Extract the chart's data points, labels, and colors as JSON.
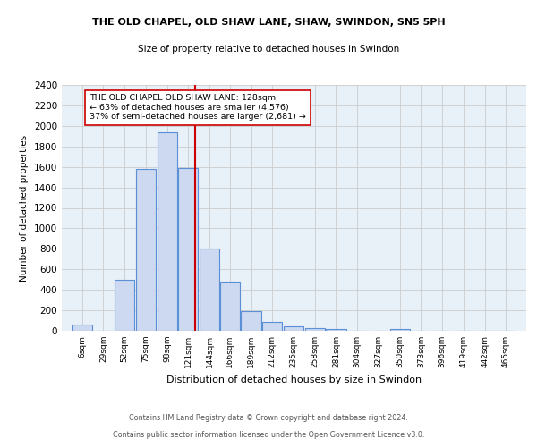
{
  "title1": "THE OLD CHAPEL, OLD SHAW LANE, SHAW, SWINDON, SN5 5PH",
  "title2": "Size of property relative to detached houses in Swindon",
  "xlabel": "Distribution of detached houses by size in Swindon",
  "ylabel": "Number of detached properties",
  "footnote1": "Contains HM Land Registry data © Crown copyright and database right 2024.",
  "footnote2": "Contains public sector information licensed under the Open Government Licence v3.0.",
  "bar_labels": [
    "6sqm",
    "29sqm",
    "52sqm",
    "75sqm",
    "98sqm",
    "121sqm",
    "144sqm",
    "166sqm",
    "189sqm",
    "212sqm",
    "235sqm",
    "258sqm",
    "281sqm",
    "304sqm",
    "327sqm",
    "350sqm",
    "373sqm",
    "396sqm",
    "419sqm",
    "442sqm",
    "465sqm"
  ],
  "bar_values": [
    60,
    0,
    500,
    1580,
    1940,
    1590,
    800,
    480,
    190,
    90,
    45,
    30,
    20,
    0,
    0,
    20,
    0,
    0,
    0,
    0,
    0
  ],
  "bar_color": "#ccd9f0",
  "bar_edge_color": "#5b8fd6",
  "bar_edge_width": 0.8,
  "property_line_x": 128,
  "property_line_color": "#cc0000",
  "annotation_text": "THE OLD CHAPEL OLD SHAW LANE: 128sqm\n← 63% of detached houses are smaller (4,576)\n37% of semi-detached houses are larger (2,681) →",
  "annotation_box_color": "white",
  "annotation_box_edge_color": "#cc0000",
  "ylim": [
    0,
    2400
  ],
  "yticks": [
    0,
    200,
    400,
    600,
    800,
    1000,
    1200,
    1400,
    1600,
    1800,
    2000,
    2200,
    2400
  ],
  "grid_color": "#cccccc",
  "bg_color": "#e8f0f8",
  "fig_bg_color": "#ffffff",
  "bin_width": 22
}
